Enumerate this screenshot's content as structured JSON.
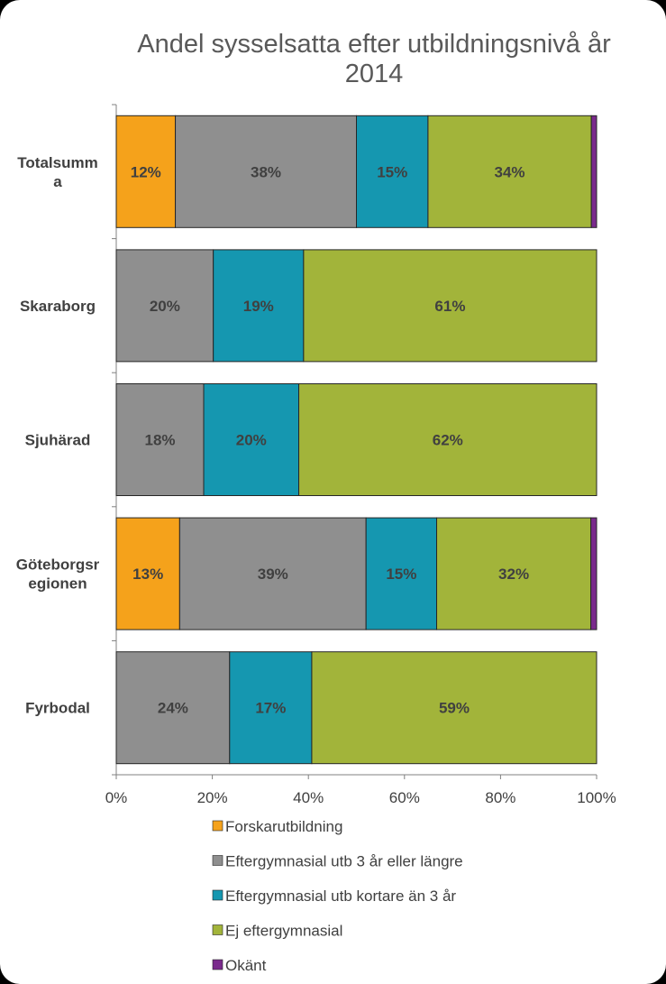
{
  "chart_data": {
    "type": "bar",
    "orientation": "horizontal",
    "stacked": true,
    "title_lines": [
      "Andel sysselsatta efter utbildningsnivå år",
      "2014"
    ],
    "categories": [
      [
        "Totalsumm",
        "a"
      ],
      [
        "Skaraborg"
      ],
      [
        "Sjuhärad"
      ],
      [
        "Göteborgsr",
        "egionen"
      ],
      [
        "Fyrbodal"
      ]
    ],
    "series": [
      {
        "name": "Forskarutbildning",
        "color": "#F5A21B",
        "values": [
          12.3,
          0,
          0,
          13.2,
          0
        ],
        "labels": [
          "12%",
          "",
          "",
          "13%",
          ""
        ]
      },
      {
        "name": "Eftergymnasial utb 3 år eller längre",
        "color": "#8F8F8F",
        "values": [
          37.7,
          20.2,
          18.2,
          38.8,
          23.6
        ],
        "labels": [
          "38%",
          "20%",
          "18%",
          "39%",
          "24%"
        ]
      },
      {
        "name": "Eftergymnasial utb kortare än 3 år",
        "color": "#1597B0",
        "values": [
          14.9,
          18.8,
          19.8,
          14.7,
          17.1
        ],
        "labels": [
          "15%",
          "19%",
          "20%",
          "15%",
          "17%"
        ]
      },
      {
        "name": "Ej eftergymnasial",
        "color": "#A2B43A",
        "values": [
          34.0,
          61.0,
          62.0,
          32.1,
          59.3
        ],
        "labels": [
          "34%",
          "61%",
          "62%",
          "32%",
          "59%"
        ]
      },
      {
        "name": "Okänt",
        "color": "#7A2A8C",
        "values": [
          1.1,
          0,
          0,
          1.2,
          0
        ],
        "labels": [
          "",
          "",
          "",
          "",
          ""
        ]
      }
    ],
    "xlim": [
      0,
      100
    ],
    "xticks": [
      "0%",
      "20%",
      "40%",
      "60%",
      "80%",
      "100%"
    ],
    "grid": false,
    "legend_position": "bottom"
  }
}
